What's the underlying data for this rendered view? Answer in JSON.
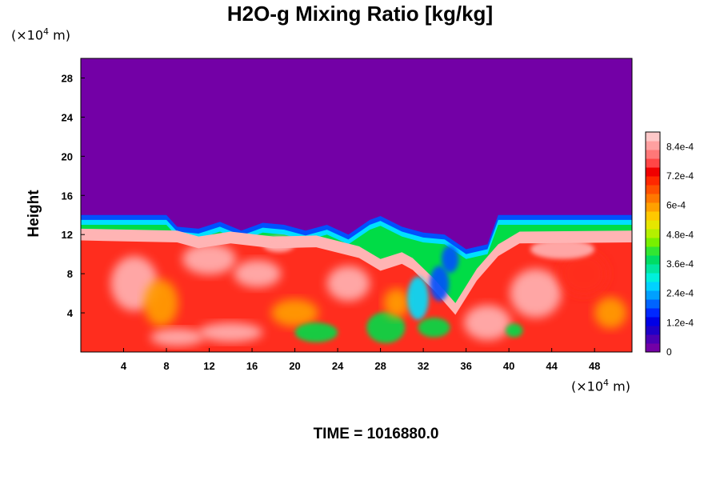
{
  "chart_data": {
    "type": "heatmap",
    "title": "H2O-g Mixing Ratio [kg/kg]",
    "ylabel": "Height",
    "xlabel": "",
    "x_unit_prefix": "(×10",
    "x_unit_exp": "4",
    "x_unit_suffix": " m)",
    "y_unit_prefix": "(×10",
    "y_unit_exp": "4",
    "y_unit_suffix": " m)",
    "xlim": [
      0,
      51.5
    ],
    "ylim": [
      0,
      30
    ],
    "x_ticks": [
      4,
      8,
      12,
      16,
      20,
      24,
      28,
      32,
      36,
      40,
      44,
      48
    ],
    "y_ticks": [
      4,
      8,
      12,
      16,
      20,
      24,
      28
    ],
    "boundary_top": [
      {
        "x": 0,
        "y": 14.0
      },
      {
        "x": 8,
        "y": 14.0
      },
      {
        "x": 9,
        "y": 12.8
      },
      {
        "x": 11,
        "y": 12.6
      },
      {
        "x": 13,
        "y": 13.3
      },
      {
        "x": 15,
        "y": 12.4
      },
      {
        "x": 17,
        "y": 13.2
      },
      {
        "x": 19,
        "y": 13.0
      },
      {
        "x": 21,
        "y": 12.4
      },
      {
        "x": 23,
        "y": 13.0
      },
      {
        "x": 25,
        "y": 12.0
      },
      {
        "x": 27,
        "y": 13.5
      },
      {
        "x": 28,
        "y": 13.9
      },
      {
        "x": 30,
        "y": 12.8
      },
      {
        "x": 32,
        "y": 12.2
      },
      {
        "x": 34,
        "y": 12.0
      },
      {
        "x": 36,
        "y": 10.5
      },
      {
        "x": 38,
        "y": 11.0
      },
      {
        "x": 39,
        "y": 14.0
      },
      {
        "x": 51.5,
        "y": 14.0
      }
    ],
    "moist_top": [
      {
        "x": 0,
        "y": 12.6
      },
      {
        "x": 9,
        "y": 12.4
      },
      {
        "x": 11,
        "y": 11.8
      },
      {
        "x": 14,
        "y": 12.3
      },
      {
        "x": 18,
        "y": 11.8
      },
      {
        "x": 22,
        "y": 11.9
      },
      {
        "x": 26,
        "y": 10.8
      },
      {
        "x": 28,
        "y": 9.5
      },
      {
        "x": 30,
        "y": 10.2
      },
      {
        "x": 31,
        "y": 9.6
      },
      {
        "x": 33,
        "y": 7.5
      },
      {
        "x": 35,
        "y": 5.0
      },
      {
        "x": 37,
        "y": 8.5
      },
      {
        "x": 39,
        "y": 11.0
      },
      {
        "x": 41,
        "y": 12.3
      },
      {
        "x": 51.5,
        "y": 12.4
      }
    ],
    "colorbar": {
      "min": 0,
      "max": 0.0009,
      "labels": [
        "0",
        "1.2e-4",
        "2.4e-4",
        "3.6e-4",
        "4.8e-4",
        "6e-4",
        "7.2e-4",
        "8.4e-4"
      ],
      "label_values": [
        0,
        0.00012,
        0.00024,
        0.00036,
        0.00048,
        0.0006,
        0.00072,
        0.00084
      ],
      "colors": [
        "#7300a6",
        "#4b00b4",
        "#1e00c8",
        "#0000e6",
        "#0028ff",
        "#0064ff",
        "#00a0ff",
        "#00d2ff",
        "#00f0dc",
        "#00e6a0",
        "#00dc64",
        "#32e632",
        "#78f000",
        "#b4f000",
        "#e6e600",
        "#ffc800",
        "#ffa000",
        "#ff7800",
        "#ff5000",
        "#ff2800",
        "#f00000",
        "#ff4646",
        "#ff7878",
        "#ffa0a0",
        "#ffc8c8"
      ]
    }
  },
  "footer": {
    "time_label": "TIME = 1016880.0"
  },
  "colors": {
    "dry": "#7300a6",
    "moist_base": "#ff2d1e",
    "saturated": "#ffb4b4",
    "orange": "#ffa000",
    "green": "#00dc46",
    "cyan": "#00e0ff",
    "blue": "#0050ff"
  }
}
